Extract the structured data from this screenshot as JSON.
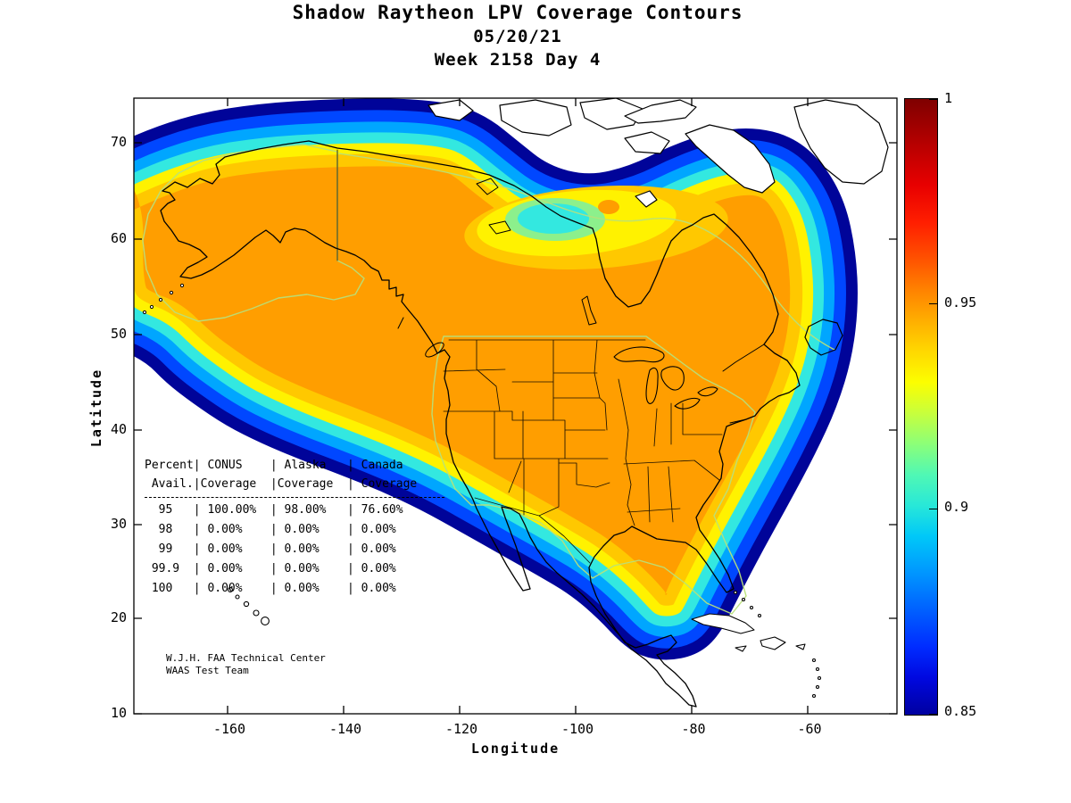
{
  "title": {
    "line1": "Shadow Raytheon LPV Coverage Contours",
    "line2": "05/20/21",
    "line3": "Week 2158 Day 4"
  },
  "axes": {
    "xlabel": "Longitude",
    "ylabel": "Latitude",
    "x_tick_labels": [
      "-160",
      "-140",
      "-120",
      "-100",
      "-80",
      "-60"
    ],
    "y_tick_labels": [
      "70",
      "60",
      "50",
      "40",
      "30",
      "20",
      "10"
    ]
  },
  "colorbar": {
    "tick_labels": [
      "1",
      "0.95",
      "0.9",
      "0.85"
    ],
    "min": 0.85,
    "max": 1
  },
  "table": {
    "header_line1": "Percent| CONUS    | Alaska   | Canada",
    "header_line2": " Avail.|Coverage  |Coverage  | Coverage",
    "row_lines": [
      "  95   | 100.00%  | 98.00%   | 76.60%",
      "  98   | 0.00%    | 0.00%    | 0.00%",
      "  99   | 0.00%    | 0.00%    | 0.00%",
      " 99.9  | 0.00%    | 0.00%    | 0.00%",
      " 100   | 0.00%    | 0.00%    | 0.00%"
    ]
  },
  "attribution": {
    "line1": "W.J.H. FAA Technical Center",
    "line2": "WAAS Test Team"
  },
  "chart_data": [
    {
      "type": "heatmap",
      "title": "Shadow Raytheon LPV Coverage Contours",
      "date": "05/20/21",
      "week": "Week 2158 Day 4",
      "xlabel": "Longitude",
      "ylabel": "Latitude",
      "x_ticks": [
        -160,
        -140,
        -120,
        -100,
        -80,
        -60
      ],
      "y_ticks": [
        70,
        60,
        50,
        40,
        30,
        20,
        10
      ],
      "x_range": [
        -175,
        -49
      ],
      "y_range": [
        10,
        74.5
      ],
      "grid": false,
      "colorbar": {
        "min": 0.85,
        "max": 1,
        "ticks": [
          1,
          0.95,
          0.9,
          0.85
        ],
        "colormap": "jet"
      },
      "band_levels": [
        0.852,
        0.868,
        0.884,
        0.9,
        0.916,
        0.932,
        0.95
      ],
      "band_colors": [
        "#000499",
        "#0047ff",
        "#00a6ff",
        "#33e8e0",
        "#fff200",
        "#ffc800",
        "#ff9e00"
      ],
      "description": "Filled LPV availability contours over North America. An orange core (~0.95-1.0) covers CONUS, Alaska and most of southern Canada, ringed by yellow, cyan and blue bands falling to 0.85 at the outer edge offshore; a local dip to ~0.9 (cyan/yellow pocket) appears over north-central Canada west of Hudson Bay."
    },
    {
      "type": "table",
      "columns": [
        "Percent Avail.",
        "CONUS Coverage",
        "Alaska Coverage",
        "Canada Coverage"
      ],
      "rows": [
        [
          "95",
          "100.00%",
          "98.00%",
          "76.60%"
        ],
        [
          "98",
          "0.00%",
          "0.00%",
          "0.00%"
        ],
        [
          "99",
          "0.00%",
          "0.00%",
          "0.00%"
        ],
        [
          "99.9",
          "0.00%",
          "0.00%",
          "0.00%"
        ],
        [
          "100",
          "0.00%",
          "0.00%",
          "0.00%"
        ]
      ]
    }
  ]
}
